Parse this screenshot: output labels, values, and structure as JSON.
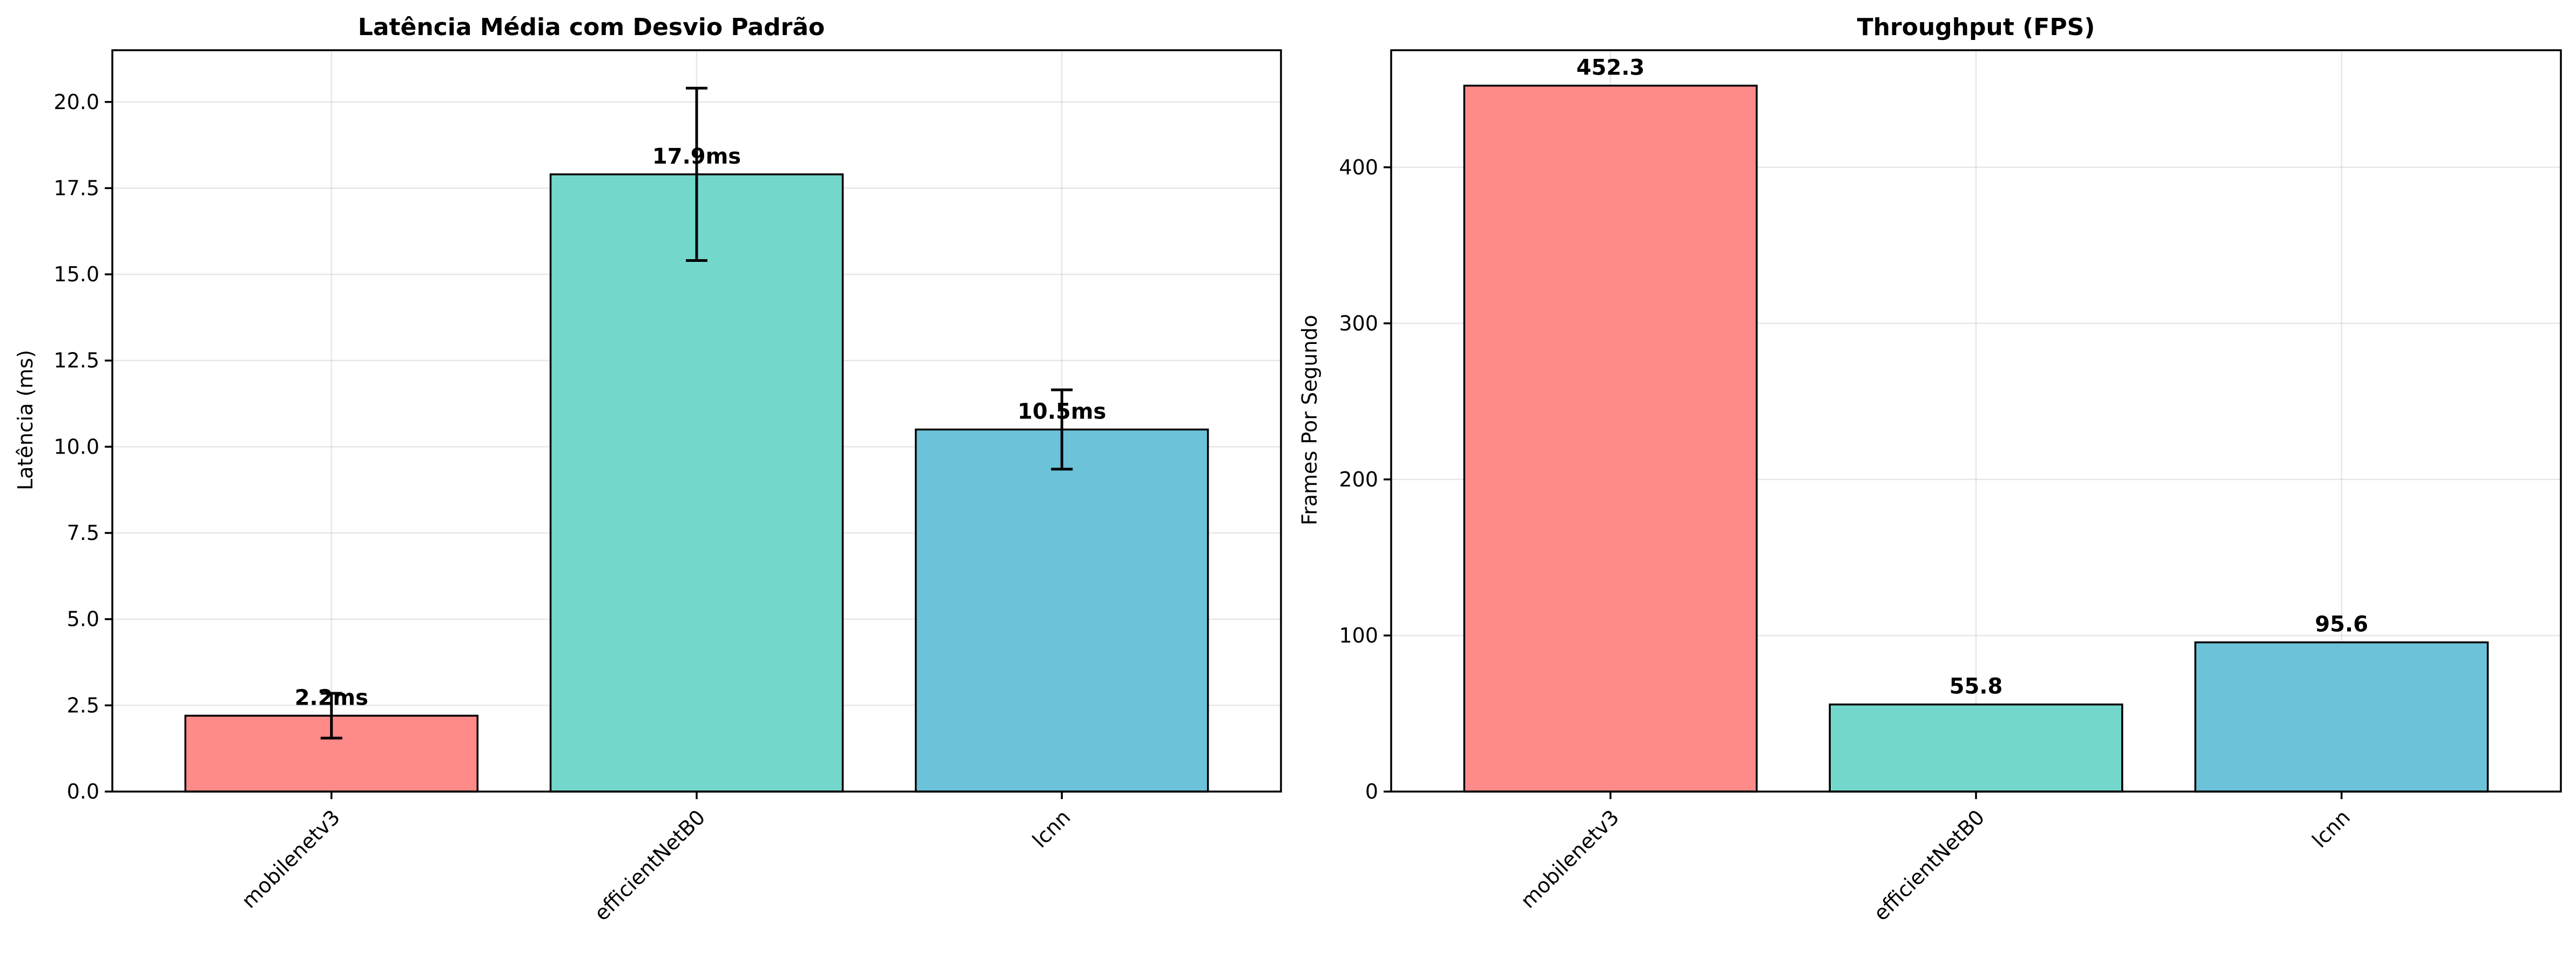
{
  "colors": [
    "#FF8A8A",
    "#74D7CB",
    "#6CC2D8"
  ],
  "chart_data": [
    {
      "id": "latency",
      "type": "bar",
      "title": "Latência Média com Desvio Padrão",
      "xlabel": "",
      "ylabel": "Latência (ms)",
      "categories": [
        "mobilenetv3",
        "efficientNetB0",
        "lcnn"
      ],
      "values": [
        2.2,
        17.9,
        10.5
      ],
      "errors": [
        0.65,
        2.5,
        1.15
      ],
      "value_labels": [
        "2.2ms",
        "17.9ms",
        "10.5ms"
      ],
      "ylim": [
        0,
        21.5
      ],
      "yticks": [
        0.0,
        2.5,
        5.0,
        7.5,
        10.0,
        12.5,
        15.0,
        17.5,
        20.0
      ],
      "ytick_labels": [
        "0.0",
        "2.5",
        "5.0",
        "7.5",
        "10.0",
        "12.5",
        "15.0",
        "17.5",
        "20.0"
      ],
      "grid": true
    },
    {
      "id": "throughput",
      "type": "bar",
      "title": "Throughput (FPS)",
      "xlabel": "",
      "ylabel": "Frames Por Segundo",
      "categories": [
        "mobilenetv3",
        "efficientNetB0",
        "lcnn"
      ],
      "values": [
        452.3,
        55.8,
        95.6
      ],
      "value_labels": [
        "452.3",
        "55.8",
        "95.6"
      ],
      "ylim": [
        0,
        475
      ],
      "yticks": [
        0,
        100,
        200,
        300,
        400
      ],
      "ytick_labels": [
        "0",
        "100",
        "200",
        "300",
        "400"
      ],
      "grid": true
    }
  ]
}
